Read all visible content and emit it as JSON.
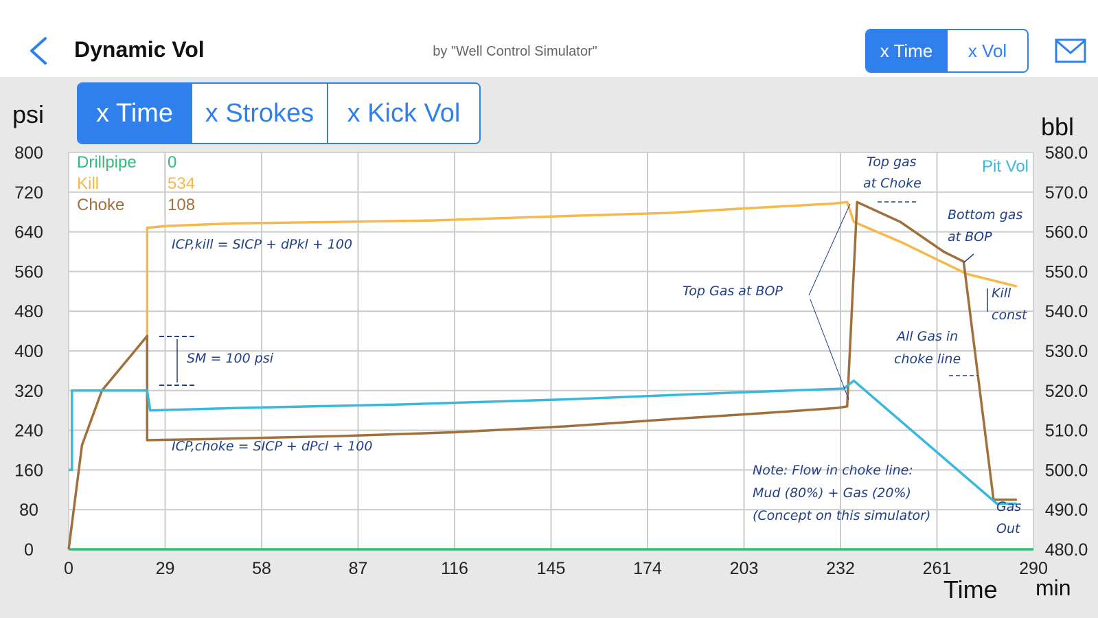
{
  "header": {
    "title": "Dynamic Vol",
    "subtitle": "by \"Well Control Simulator\"",
    "toggle": [
      {
        "label": "x Time",
        "active": true
      },
      {
        "label": "x Vol",
        "active": false
      }
    ],
    "back_icon": "chevron-left-icon",
    "mail_icon": "envelope-icon"
  },
  "axis_tabs": [
    {
      "label": "x Time",
      "active": true
    },
    {
      "label": "x Strokes",
      "active": false
    },
    {
      "label": "x Kick Vol",
      "active": false
    }
  ],
  "colors": {
    "accent": "#2f80ed",
    "drillpipe": "#2ebd7b",
    "kill": "#f7b84b",
    "choke": "#a0703c",
    "pitvol": "#3ab8dc",
    "annotation": "#1f3f8a"
  },
  "chart_data": {
    "type": "line",
    "xlabel": "Time",
    "xunit": "min",
    "ylabel": "psi",
    "y2label": "bbl",
    "xlim": [
      0,
      290
    ],
    "ylim": [
      0,
      800
    ],
    "y2lim": [
      480,
      580
    ],
    "xticks": [
      0,
      29,
      58,
      87,
      116,
      145,
      174,
      203,
      232,
      261,
      290
    ],
    "yticks": [
      0,
      80,
      160,
      240,
      320,
      400,
      480,
      560,
      640,
      720,
      800
    ],
    "y2ticks": [
      "480.0",
      "490.0",
      "500.0",
      "510.0",
      "520.0",
      "530.0",
      "540.0",
      "550.0",
      "560.0",
      "570.0",
      "580.0"
    ],
    "grid": true,
    "legend_position": "top-left",
    "legend": [
      {
        "name": "Drillpipe",
        "value": "0"
      },
      {
        "name": "Kill",
        "value": "534"
      },
      {
        "name": "Choke",
        "value": "108"
      }
    ],
    "series": [
      {
        "name": "Drillpipe",
        "axis": "left",
        "x": [
          0,
          290
        ],
        "y": [
          0,
          0
        ]
      },
      {
        "name": "Kill",
        "axis": "left",
        "x": [
          23.6,
          23.6,
          30,
          50,
          80,
          110,
          150,
          180,
          200,
          230,
          234,
          236,
          250,
          270,
          285
        ],
        "y": [
          420,
          648,
          652,
          657,
          660,
          663,
          672,
          678,
          686,
          697,
          700,
          660,
          620,
          555,
          530
        ]
      },
      {
        "name": "Choke",
        "axis": "left",
        "x": [
          0,
          4,
          10,
          23.6,
          23.6,
          40,
          80,
          116,
          150,
          180,
          210,
          231,
          234,
          237,
          250,
          263,
          269,
          278,
          285
        ],
        "y": [
          0,
          210,
          320,
          430,
          220,
          222,
          228,
          236,
          248,
          262,
          275,
          285,
          288,
          700,
          660,
          600,
          580,
          100,
          100
        ]
      },
      {
        "name": "Pit Vol",
        "axis": "right",
        "x": [
          0,
          1,
          1,
          23.6,
          24.5,
          50,
          100,
          150,
          200,
          233,
          236,
          279,
          285
        ],
        "y": [
          500,
          500,
          520,
          520,
          515,
          515.6,
          516.5,
          517.8,
          519.5,
          520.5,
          522.5,
          491.5,
          491.5
        ]
      }
    ],
    "annotations": [
      "ICP,kill = SICP + dPkl + 100",
      "SM = 100 psi",
      "ICP,choke = SICP + dPcl + 100",
      "Top Gas at BOP",
      "Top gas",
      "at Choke",
      "Bottom gas",
      "at BOP",
      "Kill",
      "const",
      "All Gas in",
      "choke line",
      "Note: Flow in choke line:",
      "Mud (80%) + Gas (20%)",
      "(Concept on this simulator)",
      "Gas",
      "Out",
      "Pit Vol"
    ]
  }
}
